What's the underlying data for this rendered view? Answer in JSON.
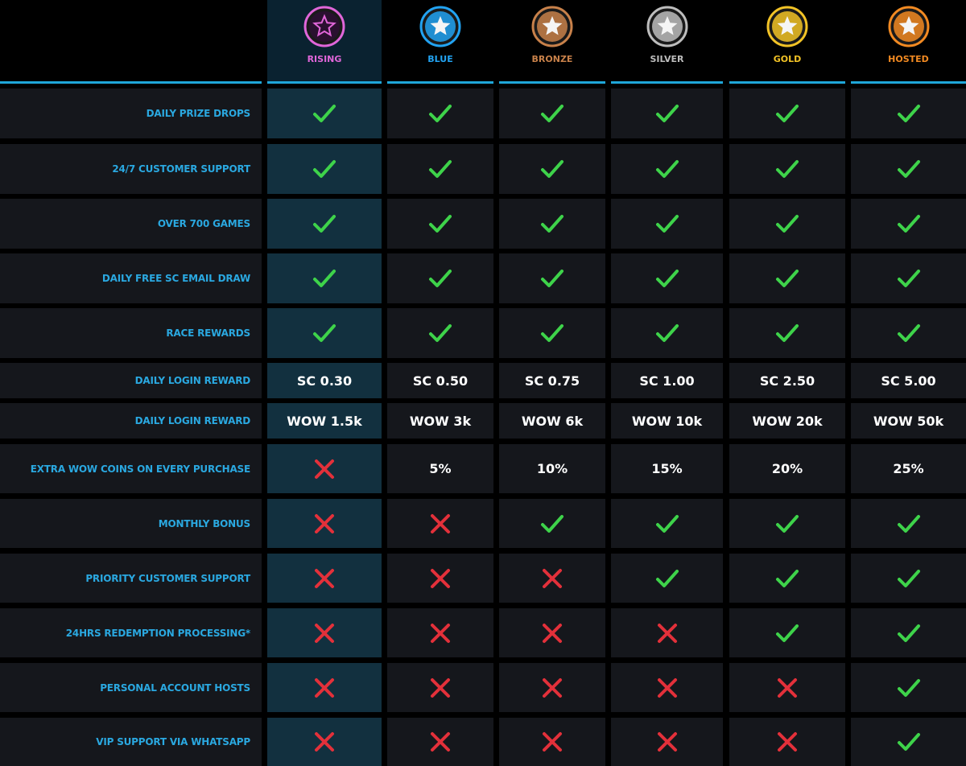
{
  "tiers": [
    {
      "name": "RISING",
      "color": "#e066d9"
    },
    {
      "name": "BLUE",
      "color": "#22a3f2"
    },
    {
      "name": "BRONZE",
      "color": "#c8814a"
    },
    {
      "name": "SILVER",
      "color": "#bdbdbd"
    },
    {
      "name": "GOLD",
      "color": "#f2c326"
    },
    {
      "name": "HOSTED",
      "color": "#f28a22"
    }
  ],
  "rows": [
    {
      "label": "DAILY PRIZE DROPS",
      "cells": [
        true,
        true,
        true,
        true,
        true,
        true
      ]
    },
    {
      "label": "24/7 CUSTOMER SUPPORT",
      "cells": [
        true,
        true,
        true,
        true,
        true,
        true
      ]
    },
    {
      "label": "OVER 700 GAMES",
      "cells": [
        true,
        true,
        true,
        true,
        true,
        true
      ]
    },
    {
      "label": "DAILY FREE SC EMAIL DRAW",
      "cells": [
        true,
        true,
        true,
        true,
        true,
        true
      ]
    },
    {
      "label": "RACE REWARDS",
      "cells": [
        true,
        true,
        true,
        true,
        true,
        true
      ]
    },
    {
      "label": "DAILY LOGIN REWARD",
      "cells": [
        "SC 0.30",
        "SC 0.50",
        "SC 0.75",
        "SC 1.00",
        "SC 2.50",
        "SC 5.00"
      ]
    },
    {
      "label": "DAILY LOGIN REWARD",
      "cells": [
        "WOW 1.5k",
        "WOW 3k",
        "WOW 6k",
        "WOW 10k",
        "WOW 20k",
        "WOW 50k"
      ]
    },
    {
      "label": "EXTRA WOW COINS ON EVERY PURCHASE",
      "cells": [
        false,
        "5%",
        "10%",
        "15%",
        "20%",
        "25%"
      ]
    },
    {
      "label": "MONTHLY BONUS",
      "cells": [
        false,
        false,
        true,
        true,
        true,
        true
      ]
    },
    {
      "label": "PRIORITY CUSTOMER SUPPORT",
      "cells": [
        false,
        false,
        false,
        true,
        true,
        true
      ]
    },
    {
      "label": "24HRS REDEMPTION PROCESSING*",
      "cells": [
        false,
        false,
        false,
        false,
        true,
        true
      ]
    },
    {
      "label": "PERSONAL ACCOUNT HOSTS",
      "cells": [
        false,
        false,
        false,
        false,
        false,
        true
      ]
    },
    {
      "label": "VIP SUPPORT VIA WHATSAPP",
      "cells": [
        false,
        false,
        false,
        false,
        false,
        true
      ]
    }
  ]
}
